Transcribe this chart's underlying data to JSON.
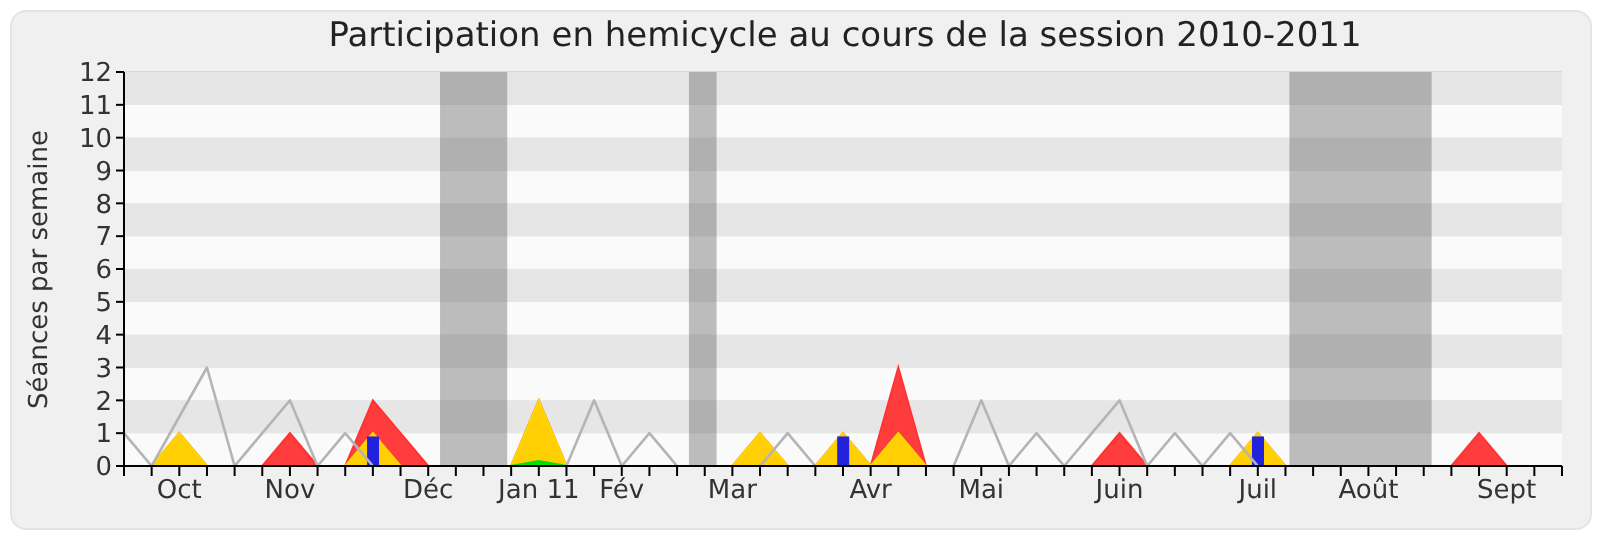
{
  "chart_data": {
    "type": "area",
    "title": "Participation en hemicycle au cours de la session 2010-2011",
    "ylabel": "Séances par semaine",
    "x": [
      "2010-09-28",
      "2010-10-05",
      "2010-10-12",
      "2010-10-19",
      "2010-10-26",
      "2010-11-02",
      "2010-11-09",
      "2010-11-16",
      "2010-11-23",
      "2010-11-30",
      "2010-12-07",
      "2010-12-14",
      "2010-12-21",
      "2010-12-28",
      "2011-01-04",
      "2011-01-11",
      "2011-01-18",
      "2011-01-25",
      "2011-02-01",
      "2011-02-08",
      "2011-02-15",
      "2011-02-22",
      "2011-03-01",
      "2011-03-08",
      "2011-03-15",
      "2011-03-22",
      "2011-03-29",
      "2011-04-05",
      "2011-04-12",
      "2011-04-19",
      "2011-04-26",
      "2011-05-03",
      "2011-05-10",
      "2011-05-17",
      "2011-05-24",
      "2011-05-31",
      "2011-06-07",
      "2011-06-14",
      "2011-06-21",
      "2011-06-28",
      "2011-07-05",
      "2011-07-12",
      "2011-07-19",
      "2011-07-26",
      "2011-08-02",
      "2011-08-09",
      "2011-08-16",
      "2011-08-23",
      "2011-08-30",
      "2011-09-06",
      "2011-09-13",
      "2011-09-20",
      "2011-09-27"
    ],
    "series": [
      {
        "type": "line",
        "color": "#b4b4b4",
        "values": [
          1,
          0,
          1.5,
          3,
          0,
          1,
          2,
          0,
          1,
          0,
          null,
          null,
          null,
          null,
          null,
          null,
          0,
          2,
          0,
          1,
          0,
          null,
          null,
          0,
          1,
          0,
          null,
          null,
          null,
          null,
          0,
          2,
          0,
          1,
          0,
          1,
          2,
          0,
          1,
          0,
          1,
          0,
          null,
          null,
          null,
          null,
          null,
          null,
          null,
          null,
          null,
          null,
          null
        ]
      },
      {
        "color": "#ff3333",
        "values": [
          0,
          0,
          1,
          0,
          0,
          0,
          1,
          0,
          0,
          2,
          1,
          0,
          0,
          0,
          0,
          2,
          0,
          0,
          0,
          0,
          0,
          0,
          0,
          1,
          0,
          0,
          1,
          0,
          3,
          0,
          0,
          0,
          0,
          0,
          0,
          0,
          1,
          0,
          0,
          0,
          0,
          1,
          0,
          0,
          0,
          0,
          0,
          0,
          0,
          1,
          0,
          0,
          0
        ]
      },
      {
        "color": "#ffd700",
        "values": [
          0,
          0,
          1,
          0,
          0,
          0,
          0,
          0,
          0,
          1,
          0,
          0,
          0,
          0,
          0,
          2,
          0,
          0,
          0,
          0,
          0,
          0,
          0,
          1,
          0,
          0,
          1,
          0,
          1,
          0,
          0,
          0,
          0,
          0,
          0,
          0,
          0,
          0,
          0,
          0,
          0,
          1,
          0,
          0,
          0,
          0,
          0,
          0,
          0,
          0,
          0,
          0,
          0
        ]
      },
      {
        "color": "#00dd00",
        "values": [
          0,
          0,
          0,
          0,
          0,
          0,
          0,
          0,
          0,
          0,
          0,
          0,
          0,
          0,
          0,
          0.15,
          0,
          0,
          0,
          0,
          0,
          0,
          0,
          0,
          0,
          0,
          0,
          0,
          0,
          0,
          0,
          0,
          0,
          0,
          0,
          0,
          0,
          0,
          0,
          0,
          0,
          0,
          0,
          0,
          0,
          0,
          0,
          0,
          0,
          0,
          0,
          0,
          0
        ]
      },
      {
        "type": "bar",
        "color": "#2222dd",
        "values": [
          null,
          null,
          null,
          null,
          null,
          null,
          null,
          null,
          null,
          0.9,
          null,
          null,
          null,
          null,
          null,
          null,
          null,
          null,
          null,
          null,
          null,
          null,
          null,
          null,
          null,
          null,
          0.9,
          null,
          null,
          null,
          null,
          null,
          null,
          null,
          null,
          null,
          null,
          null,
          null,
          null,
          null,
          0.9,
          null,
          null,
          null,
          null,
          null,
          null,
          null,
          null,
          null,
          null,
          null
        ]
      }
    ],
    "bands": [
      {
        "axis": "x",
        "from": "2010-12-17",
        "to": "2011-01-03",
        "color": "#5f5f5f"
      },
      {
        "axis": "x",
        "from": "2011-02-18",
        "to": "2011-02-25",
        "color": "#5f5f5f"
      },
      {
        "axis": "x",
        "from": "2011-07-20",
        "to": "2011-08-25",
        "color": "#5f5f5f"
      }
    ],
    "xlim": [
      "2010-09-28",
      "2011-09-27"
    ],
    "xticks": [
      {
        "value": "2010-09-28",
        "label": null
      },
      {
        "value": "2010-10-05",
        "label": null
      },
      {
        "value": "2010-10-12",
        "label": "Oct"
      },
      {
        "value": "2010-10-19",
        "label": null
      },
      {
        "value": "2010-10-26",
        "label": null
      },
      {
        "value": "2010-11-02",
        "label": null
      },
      {
        "value": "2010-11-09",
        "label": "Nov"
      },
      {
        "value": "2010-11-16",
        "label": null
      },
      {
        "value": "2010-11-23",
        "label": null
      },
      {
        "value": "2010-11-30",
        "label": null
      },
      {
        "value": "2010-12-07",
        "label": null
      },
      {
        "value": "2010-12-14",
        "label": "Déc"
      },
      {
        "value": "2010-12-21",
        "label": null
      },
      {
        "value": "2010-12-28",
        "label": null
      },
      {
        "value": "2011-01-04",
        "label": null
      },
      {
        "value": "2011-01-11",
        "label": "Jan 11"
      },
      {
        "value": "2011-01-18",
        "label": null
      },
      {
        "value": "2011-01-25",
        "label": null
      },
      {
        "value": "2011-02-01",
        "label": "Fév"
      },
      {
        "value": "2011-02-08",
        "label": null
      },
      {
        "value": "2011-02-15",
        "label": null
      },
      {
        "value": "2011-02-22",
        "label": null
      },
      {
        "value": "2011-03-01",
        "label": "Mar"
      },
      {
        "value": "2011-03-08",
        "label": null
      },
      {
        "value": "2011-03-15",
        "label": null
      },
      {
        "value": "2011-03-22",
        "label": null
      },
      {
        "value": "2011-03-29",
        "label": null
      },
      {
        "value": "2011-04-05",
        "label": "Avr"
      },
      {
        "value": "2011-04-12",
        "label": null
      },
      {
        "value": "2011-04-19",
        "label": null
      },
      {
        "value": "2011-04-26",
        "label": null
      },
      {
        "value": "2011-05-03",
        "label": "Mai"
      },
      {
        "value": "2011-05-10",
        "label": null
      },
      {
        "value": "2011-05-17",
        "label": null
      },
      {
        "value": "2011-05-24",
        "label": null
      },
      {
        "value": "2011-05-31",
        "label": null
      },
      {
        "value": "2011-06-07",
        "label": "Juin"
      },
      {
        "value": "2011-06-14",
        "label": null
      },
      {
        "value": "2011-06-21",
        "label": null
      },
      {
        "value": "2011-06-28",
        "label": null
      },
      {
        "value": "2011-07-05",
        "label": null
      },
      {
        "value": "2011-07-12",
        "label": "Juil"
      },
      {
        "value": "2011-07-19",
        "label": null
      },
      {
        "value": "2011-07-26",
        "label": null
      },
      {
        "value": "2011-08-02",
        "label": null
      },
      {
        "value": "2011-08-09",
        "label": "Août"
      },
      {
        "value": "2011-08-16",
        "label": null
      },
      {
        "value": "2011-08-23",
        "label": null
      },
      {
        "value": "2011-08-30",
        "label": null
      },
      {
        "value": "2011-09-06",
        "label": null
      },
      {
        "value": "2011-09-13",
        "label": "Sept"
      },
      {
        "value": "2011-09-20",
        "label": null
      },
      {
        "value": "2011-09-27",
        "label": null
      }
    ],
    "ylim": [
      0,
      12
    ],
    "yticks": [
      0,
      1,
      2,
      3,
      4,
      5,
      6,
      7,
      8,
      9,
      10,
      11,
      12
    ],
    "grid": "y"
  }
}
